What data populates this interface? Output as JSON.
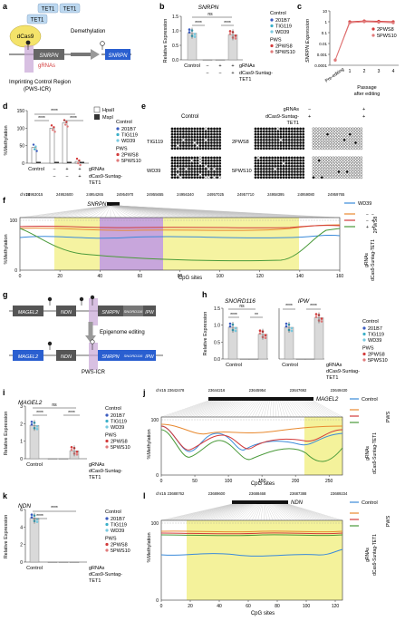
{
  "panels": {
    "a": {
      "letter": "a",
      "dcas9": "dCas9",
      "tet": [
        "TET1",
        "TET1",
        "TET1"
      ],
      "demethylation": "Demethylation",
      "gene": "SNRPN",
      "grnas": "gRNAs",
      "region_line1": "Imprinting Control Region",
      "region_line2": "(PWS-ICR)"
    },
    "b": {
      "letter": "b",
      "title": "SNRPN",
      "ylabel": "Relative Expression",
      "yticks": [
        "0.0",
        "0.5",
        "1.0",
        "1.5"
      ],
      "xlabels": [
        "Control",
        "−",
        "+",
        "+"
      ],
      "row2": [
        "−",
        "−",
        "+"
      ],
      "row_labels": [
        "gRNAs",
        "dCas9-Suntag-",
        "TET1"
      ],
      "sig": [
        "****",
        "****",
        "ns"
      ],
      "legend": {
        "control_title": "Control",
        "control": [
          {
            "name": "201B7",
            "color": "#3a5bbf"
          },
          {
            "name": "TIG119",
            "color": "#3ab0c9"
          },
          {
            "name": "WD39",
            "color": "#78c9e0"
          }
        ],
        "pws_title": "PWS",
        "pws": [
          {
            "name": "2PWS8",
            "color": "#d33b3b"
          },
          {
            "name": "5PWS10",
            "color": "#e07a7a"
          }
        ]
      }
    },
    "c": {
      "letter": "c",
      "ylabel": "SNRPN Expression",
      "yticks": [
        "10",
        "1",
        "0.1",
        "0.01",
        "0.001",
        "0.0001"
      ],
      "xticks": [
        "Pre-editing",
        "1",
        "2",
        "3",
        "4"
      ],
      "xlabel1": "Passage",
      "xlabel2": "after editing",
      "legend": [
        {
          "name": "2PWS8",
          "color": "#d33b3b"
        },
        {
          "name": "5PWS10",
          "color": "#e07a7a"
        }
      ]
    },
    "d": {
      "letter": "d",
      "ylabel": "%Methylation",
      "yticks": [
        "0",
        "50",
        "100",
        "150"
      ],
      "sig": [
        "****",
        "****",
        "****"
      ],
      "enzyme_legend": [
        {
          "name": "HpaII",
          "fill": "#ffffff"
        },
        {
          "name": "MspI",
          "fill": "#333333"
        }
      ],
      "xlabels": [
        "Control",
        "−",
        "+",
        "+"
      ],
      "row2": [
        "−",
        "−",
        "+"
      ],
      "row_labels": [
        "gRNAs",
        "dCas9-Suntag-",
        "TET1"
      ],
      "legend": {
        "control_title": "Control",
        "control": [
          "201B7",
          "TIG119",
          "WD39"
        ],
        "pws_title": "PWS",
        "pws": [
          "2PWS8",
          "5PWS10"
        ]
      }
    },
    "e": {
      "letter": "e",
      "control_label": "Control",
      "samples_left": [
        "TIG119",
        "WD39"
      ],
      "samples_right": [
        "2PWS8",
        "5PWS10"
      ],
      "grnas_row": [
        "gRNAs",
        "−",
        "+"
      ],
      "cas_row": [
        "dCas9-Suntag-",
        "+",
        "+"
      ],
      "tet_row": "TET1"
    },
    "f": {
      "letter": "f",
      "chrom": "chr15",
      "coords": [
        "24953015",
        "24953600",
        "24954265",
        "24954970",
        "24955655",
        "24956340",
        "24957025",
        "24957710",
        "24958395",
        "24959080",
        "24959765"
      ],
      "gene": "SNRPN",
      "ylabel": "%Methylation",
      "xlabel": "CpG sites",
      "yticks": [
        "0",
        "100"
      ],
      "xticks": [
        "0",
        "20",
        "40",
        "60",
        "80",
        "100",
        "120",
        "140",
        "160"
      ],
      "legend_title": "WD39",
      "side": "2PWS8",
      "rows": [
        "gRNAs",
        "dCas9-Suntag-TET1"
      ]
    },
    "g": {
      "letter": "g",
      "genes_top": [
        "MAGEL2",
        "NDN",
        "SNRPN",
        "SNORD116",
        "IPW"
      ],
      "editing": "Epigenome editing",
      "genes_bottom": [
        "MAGEL2",
        "NDN",
        "SNRPN",
        "SNORD116",
        "IPW"
      ],
      "region": "PWS-ICR"
    },
    "h": {
      "letter": "h",
      "title1": "SNORD116",
      "title2": "IPW",
      "ylabel": "Relative Expression",
      "yticks": [
        "0.0",
        "0.5",
        "1.0",
        "1.5"
      ],
      "sig1": [
        "****",
        "ns",
        "**"
      ],
      "sig2": [
        "****",
        "****"
      ],
      "xlabels": [
        "Control",
        "−",
        "+",
        "+"
      ],
      "row_labels": [
        "gRNAs",
        "dCas9-Suntag-",
        "TET1"
      ],
      "legend": {
        "control_title": "Control",
        "control": [
          "201B7",
          "TIG119",
          "WD39"
        ],
        "pws_title": "PWS",
        "pws": [
          "2PWS8",
          "5PWS10"
        ]
      }
    },
    "i": {
      "letter": "i",
      "title": "MAGEL2",
      "ylabel": "Relative Expression",
      "yticks": [
        "0",
        "1",
        "2",
        "3"
      ],
      "sig": [
        "****",
        "****",
        "ns"
      ],
      "xlabels": [
        "Control",
        "−",
        "+",
        "+"
      ],
      "row_labels": [
        "gRNAs",
        "dCas9-Suntag-",
        "TET1"
      ],
      "legend": {
        "control_title": "Control",
        "control": [
          "201B7",
          "TIG119",
          "WD39"
        ],
        "pws_title": "PWS",
        "pws": [
          "2PWS8",
          "5PWS10"
        ]
      }
    },
    "j": {
      "letter": "j",
      "chrom": "chr15",
      "coords": [
        "23642478",
        "23644216",
        "23645954",
        "23647692",
        "23649430"
      ],
      "gene": "MAGEL2",
      "ylabel": "%Methylation",
      "xlabel": "CpG sites",
      "yticks": [
        "0",
        "100"
      ],
      "xticks": [
        "0",
        "50",
        "100",
        "150",
        "200",
        "250"
      ],
      "legend_title": "Control",
      "side": "PWS",
      "rows": [
        "gRNAs",
        "dCas9-Suntag-TET1"
      ]
    },
    "k": {
      "letter": "k",
      "title": "NDN",
      "ylabel": "Relative Expression",
      "yticks": [
        "0",
        "2",
        "4",
        "6"
      ],
      "sig": [
        "****",
        "****"
      ],
      "xlabels": [
        "Control",
        "−",
        "+",
        "+"
      ],
      "row_labels": [
        "gRNAs",
        "dCas9-Suntag-",
        "TET1"
      ],
      "legend": {
        "control_title": "Control",
        "control": [
          "201B7",
          "TIG119",
          "WD39"
        ],
        "pws_title": "PWS",
        "pws": [
          "2PWS8",
          "5PWS10"
        ]
      }
    },
    "l": {
      "letter": "l",
      "chrom": "chr15",
      "coords": [
        "23688762",
        "23689600",
        "23688468",
        "23687388",
        "23689234"
      ],
      "gene": "NDN",
      "ylabel": "%Methylation",
      "xlabel": "CpG sites",
      "yticks": [
        "0",
        "100"
      ],
      "xticks": [
        "0",
        "20",
        "40",
        "60",
        "80",
        "100",
        "120"
      ],
      "legend_title": "Control",
      "side": "PWS",
      "rows": [
        "gRNAs",
        "dCas9-Suntag-TET1"
      ]
    }
  },
  "chart_data": [
    {
      "panel": "b",
      "type": "bar",
      "title": "SNRPN",
      "categories": [
        "Control",
        "PWS −/−",
        "PWS −/+",
        "PWS +/+"
      ],
      "values": [
        0.98,
        0.0,
        0.0,
        0.92
      ],
      "ylabel": "Relative Expression",
      "ylim": [
        0,
        1.6
      ]
    },
    {
      "panel": "c",
      "type": "line",
      "x": [
        "Pre-editing",
        "1",
        "2",
        "3",
        "4"
      ],
      "series": [
        {
          "name": "2PWS8",
          "values": [
            0.0003,
            1.0,
            1.2,
            1.1,
            1.0
          ]
        },
        {
          "name": "5PWS10",
          "values": [
            0.0003,
            0.8,
            1.0,
            0.9,
            0.8
          ]
        }
      ],
      "ylabel": "SNRPN Expression",
      "log_scale": true
    },
    {
      "panel": "d",
      "type": "bar",
      "categories": [
        "Control",
        "PWS −/−",
        "PWS −/+",
        "PWS +/+"
      ],
      "series": [
        {
          "name": "HpaII",
          "values": [
            45,
            100,
            115,
            5
          ]
        },
        {
          "name": "MspI",
          "values": [
            2,
            2,
            2,
            2
          ]
        }
      ],
      "ylabel": "%Methylation",
      "ylim": [
        0,
        150
      ]
    },
    {
      "panel": "h",
      "type": "bar",
      "title": "SNORD116",
      "categories": [
        "Control",
        "PWS −/−",
        "PWS −/+",
        "PWS +/+"
      ],
      "values": [
        1.0,
        0.0,
        0.0,
        0.78
      ],
      "ylim": [
        0,
        1.6
      ]
    },
    {
      "panel": "h",
      "type": "bar",
      "title": "IPW",
      "categories": [
        "Control",
        "PWS −/−",
        "PWS −/+",
        "PWS +/+"
      ],
      "values": [
        1.0,
        0.0,
        0.0,
        1.3
      ],
      "ylim": [
        0,
        1.6
      ]
    },
    {
      "panel": "i",
      "type": "bar",
      "title": "MAGEL2",
      "categories": [
        "Control",
        "PWS −/−",
        "PWS −/+",
        "PWS +/+"
      ],
      "values": [
        1.9,
        0.0,
        0.0,
        0.45
      ],
      "ylim": [
        0,
        3
      ]
    },
    {
      "panel": "k",
      "type": "bar",
      "title": "NDN",
      "categories": [
        "Control",
        "PWS −/−",
        "PWS −/+",
        "PWS +/+"
      ],
      "values": [
        5.0,
        0.0,
        0.0,
        0.0
      ],
      "ylim": [
        0,
        6
      ]
    }
  ],
  "colors": {
    "blue": "#3a8ad9",
    "orange": "#e8892f",
    "red": "#d33b3b",
    "green": "#4a9a3a",
    "yellow": "#f2f08a",
    "purple": "#9a5cc0",
    "pink": "#e64fa8"
  }
}
